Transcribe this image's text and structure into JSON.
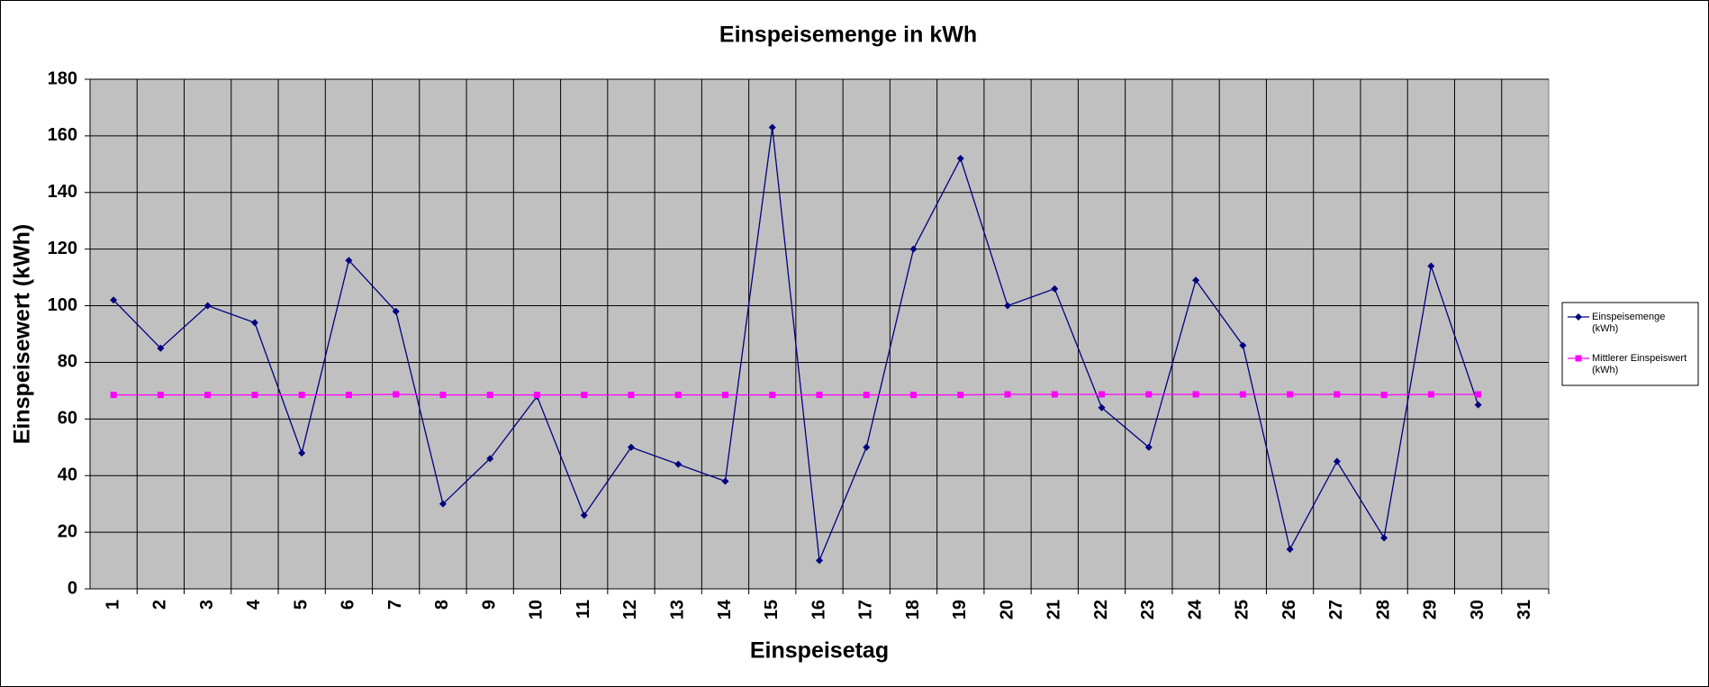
{
  "chart_data": {
    "type": "line",
    "title": "Einspeisemenge in kWh",
    "x_label": "Einspeisetag",
    "y_label": "Einspeisewert  (kWh)",
    "categories": [
      "1",
      "2",
      "3",
      "4",
      "5",
      "6",
      "7",
      "8",
      "9",
      "10",
      "11",
      "12",
      "13",
      "14",
      "15",
      "16",
      "17",
      "18",
      "19",
      "20",
      "21",
      "22",
      "23",
      "24",
      "25",
      "26",
      "27",
      "28",
      "29",
      "30",
      "31"
    ],
    "series": [
      {
        "name": "Einspeisemenge (kWh)",
        "color": "#000080",
        "marker": "diamond",
        "values": [
          102,
          85,
          100,
          94,
          48,
          116,
          98,
          30,
          46,
          68,
          26,
          50,
          44,
          38,
          163,
          10,
          50,
          120,
          152,
          100,
          106,
          64,
          50,
          109,
          86,
          14,
          45,
          18,
          114,
          65,
          null
        ]
      },
      {
        "name": "Mittlerer Einspeiswert (kWh)",
        "color": "#ff00ff",
        "marker": "square",
        "values": [
          68.5,
          68.5,
          68.5,
          68.5,
          68.5,
          68.5,
          68.7,
          68.5,
          68.5,
          68.5,
          68.5,
          68.5,
          68.5,
          68.5,
          68.5,
          68.5,
          68.5,
          68.5,
          68.5,
          68.7,
          68.7,
          68.7,
          68.7,
          68.7,
          68.7,
          68.7,
          68.7,
          68.5,
          68.7,
          68.7,
          null
        ]
      }
    ],
    "ylim": [
      0,
      180
    ],
    "yticks": [
      0,
      20,
      40,
      60,
      80,
      100,
      120,
      140,
      160,
      180
    ],
    "grid": true,
    "legend": "right",
    "plot_background": "#c0c0c0"
  }
}
